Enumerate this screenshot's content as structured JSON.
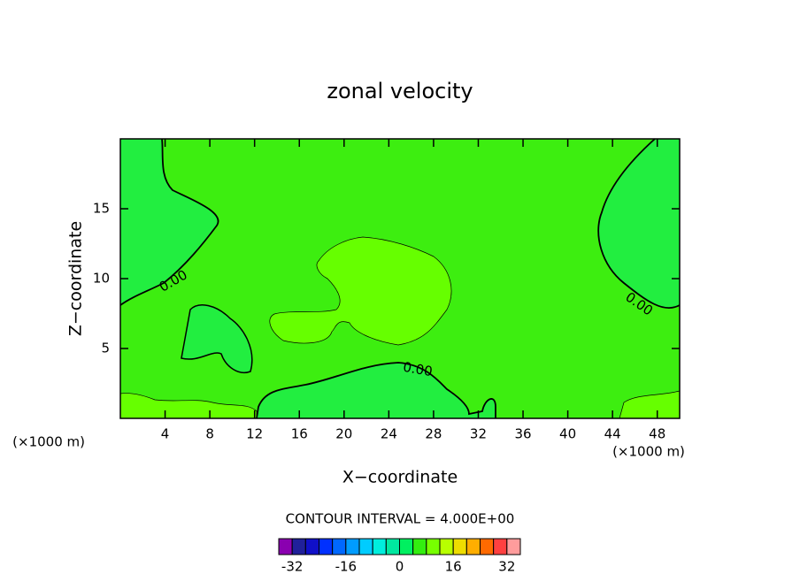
{
  "chart_data": {
    "type": "contour",
    "title": "zonal velocity",
    "x_label": "X−coordinate",
    "y_label": "Z−coordinate",
    "x_unit_left": "(×1000 m)",
    "x_unit_right": "(×1000 m)",
    "xlim": [
      0,
      50
    ],
    "xticks": [
      4,
      8,
      12,
      16,
      20,
      24,
      28,
      32,
      36,
      40,
      44,
      48
    ],
    "ylim": [
      0,
      20
    ],
    "yticks": [
      5,
      10,
      15
    ],
    "contour_levels": [
      0,
      0,
      0
    ],
    "contour_level_labels": [
      "0.00",
      "0.00",
      "0.00"
    ],
    "contour_interval_text": "CONTOUR INTERVAL = 4.000E+00",
    "colorbar": {
      "lim": [
        -36,
        36
      ],
      "colors": [
        "#8a00b0",
        "#20209a",
        "#1010c8",
        "#0030ff",
        "#0068ff",
        "#009cff",
        "#00ccff",
        "#00eedd",
        "#00e8a0",
        "#00f060",
        "#33ee10",
        "#77ff00",
        "#b8ff00",
        "#eedd00",
        "#ffae00",
        "#ff6a00",
        "#ff4040",
        "#ff9c9c"
      ],
      "ticks": [
        -32,
        -16,
        0,
        16,
        32
      ]
    }
  }
}
